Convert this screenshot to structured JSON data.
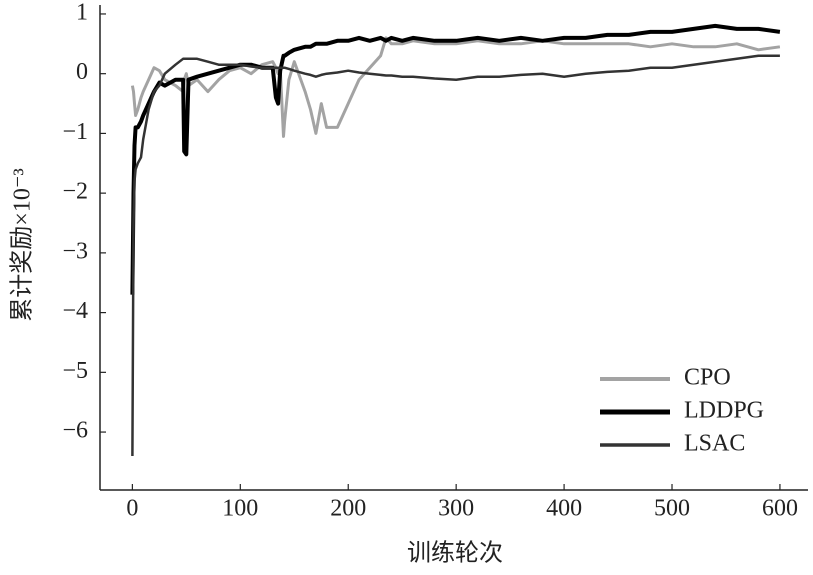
{
  "chart_data": {
    "type": "line",
    "x_label": "训练轮次",
    "y_label": "累计奖励×10⁻³",
    "xlim": [
      -30,
      626
    ],
    "ylim": [
      -6.97,
      1.15
    ],
    "xticks": [
      0,
      100,
      200,
      300,
      400,
      500,
      600
    ],
    "yticks": [
      {
        "value": -6,
        "label": "−6"
      },
      {
        "value": -5,
        "label": "−5"
      },
      {
        "value": -4,
        "label": "−4"
      },
      {
        "value": -3,
        "label": "−3"
      },
      {
        "value": -2,
        "label": "−2"
      },
      {
        "value": -1,
        "label": "−1"
      },
      0,
      1
    ],
    "legend": "lower right",
    "x": [
      0,
      1,
      2,
      3,
      5,
      8,
      10,
      15,
      20,
      25,
      30,
      40,
      47,
      48,
      50,
      52,
      60,
      70,
      80,
      90,
      100,
      110,
      120,
      130,
      133,
      135,
      137,
      140,
      141,
      145,
      150,
      160,
      165,
      170,
      175,
      180,
      190,
      200,
      210,
      220,
      230,
      235,
      240,
      250,
      260,
      280,
      300,
      320,
      340,
      360,
      380,
      400,
      420,
      440,
      460,
      480,
      500,
      520,
      540,
      560,
      580,
      600
    ],
    "series": [
      {
        "name": "CPO",
        "color": "#a3a3a3",
        "values": [
          -0.2,
          -0.3,
          -0.5,
          -0.7,
          -0.6,
          -0.4,
          -0.3,
          -0.1,
          0.1,
          0.05,
          -0.1,
          -0.2,
          -0.3,
          -0.1,
          0,
          -0.2,
          -0.1,
          -0.3,
          -0.1,
          0.05,
          0.1,
          0,
          0.15,
          0.2,
          0.1,
          0,
          0.1,
          -1.05,
          -0.8,
          -0.1,
          0.2,
          -0.3,
          -0.6,
          -1.0,
          -0.5,
          -0.9,
          -0.9,
          -0.5,
          -0.1,
          0.1,
          0.3,
          0.6,
          0.5,
          0.5,
          0.55,
          0.5,
          0.5,
          0.55,
          0.5,
          0.5,
          0.55,
          0.5,
          0.5,
          0.5,
          0.5,
          0.45,
          0.5,
          0.45,
          0.45,
          0.5,
          0.4,
          0.45
        ]
      },
      {
        "name": "LDDPG",
        "color": "#000000",
        "values": [
          -3.7,
          -2.0,
          -1.2,
          -0.9,
          -0.9,
          -0.8,
          -0.7,
          -0.5,
          -0.3,
          -0.15,
          -0.2,
          -0.1,
          -0.1,
          -1.3,
          -1.35,
          -0.1,
          -0.05,
          0,
          0.05,
          0.1,
          0.15,
          0.15,
          0.1,
          0.1,
          -0.4,
          -0.5,
          0.05,
          0.3,
          0.3,
          0.35,
          0.4,
          0.45,
          0.45,
          0.5,
          0.5,
          0.5,
          0.55,
          0.55,
          0.6,
          0.55,
          0.6,
          0.55,
          0.6,
          0.55,
          0.6,
          0.55,
          0.55,
          0.6,
          0.55,
          0.6,
          0.55,
          0.6,
          0.6,
          0.65,
          0.65,
          0.7,
          0.7,
          0.75,
          0.8,
          0.75,
          0.75,
          0.7
        ]
      },
      {
        "name": "LSAC",
        "color": "#333333",
        "values": [
          -6.4,
          -2.5,
          -1.8,
          -1.6,
          -1.5,
          -1.4,
          -1.1,
          -0.6,
          -0.3,
          -0.2,
          0,
          0.15,
          0.25,
          0.25,
          0.25,
          0.25,
          0.25,
          0.2,
          0.15,
          0.15,
          0.15,
          0.12,
          0.1,
          0.1,
          0.1,
          0.1,
          0.1,
          0.1,
          0.1,
          0.08,
          0.05,
          0,
          -0.02,
          -0.05,
          -0.02,
          0,
          0.02,
          0.05,
          0.02,
          0,
          -0.02,
          -0.03,
          -0.03,
          -0.05,
          -0.05,
          -0.08,
          -0.1,
          -0.05,
          -0.05,
          -0.02,
          0,
          -0.05,
          0,
          0.03,
          0.05,
          0.1,
          0.1,
          0.15,
          0.2,
          0.25,
          0.3,
          0.3
        ]
      }
    ]
  }
}
